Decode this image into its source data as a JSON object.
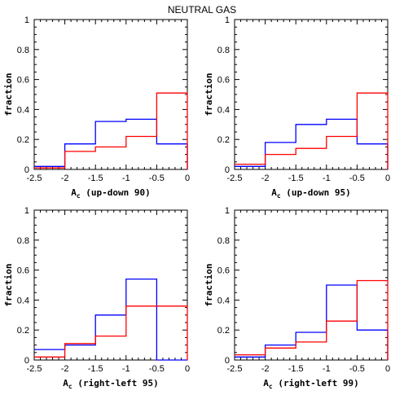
{
  "figure_title": "NEUTRAL GAS",
  "colors": {
    "series_a": "#0000ff",
    "series_b": "#ff0000",
    "axes": "#000000"
  },
  "chart_data": [
    {
      "type": "histogram",
      "bin_edges": [
        -2.5,
        -2,
        -1.5,
        -1,
        -0.5,
        0
      ],
      "series": [
        {
          "color": "blue",
          "values": [
            0.02,
            0.17,
            0.32,
            0.335,
            0.17
          ]
        },
        {
          "color": "red",
          "values": [
            0.01,
            0.12,
            0.15,
            0.22,
            0.51
          ]
        }
      ],
      "xlabel_main": "A",
      "xlabel_sub": "c",
      "xlabel_rest": " (up-down 90)",
      "ylabel": "fraction",
      "xlim": [
        -2.5,
        0
      ],
      "ylim": [
        0,
        1
      ],
      "xticks": [
        "-2.5",
        "-2",
        "-1.5",
        "-1",
        "-0.5",
        "0"
      ],
      "yticks": [
        "0",
        "0.2",
        "0.4",
        "0.6",
        "0.8",
        "1"
      ]
    },
    {
      "type": "histogram",
      "bin_edges": [
        -2.5,
        -2,
        -1.5,
        -1,
        -0.5,
        0
      ],
      "series": [
        {
          "color": "blue",
          "values": [
            0.02,
            0.18,
            0.3,
            0.335,
            0.17
          ]
        },
        {
          "color": "red",
          "values": [
            0.035,
            0.1,
            0.14,
            0.22,
            0.51
          ]
        }
      ],
      "xlabel_main": "A",
      "xlabel_sub": "c",
      "xlabel_rest": " (up-down 95)",
      "ylabel": "fraction",
      "xlim": [
        -2.5,
        0
      ],
      "ylim": [
        0,
        1
      ],
      "xticks": [
        "-2.5",
        "-2",
        "-1.5",
        "-1",
        "-0.5",
        "0"
      ],
      "yticks": [
        "0",
        "0.2",
        "0.4",
        "0.6",
        "0.8",
        "1"
      ]
    },
    {
      "type": "histogram",
      "bin_edges": [
        -2.5,
        -2,
        -1.5,
        -1,
        -0.5,
        0
      ],
      "series": [
        {
          "color": "blue",
          "values": [
            0.07,
            0.1,
            0.3,
            0.54,
            0.0
          ]
        },
        {
          "color": "red",
          "values": [
            0.02,
            0.11,
            0.16,
            0.36,
            0.36
          ]
        }
      ],
      "xlabel_main": "A",
      "xlabel_sub": "c",
      "xlabel_rest": " (right-left 95)",
      "ylabel": "fraction",
      "xlim": [
        -2.5,
        0
      ],
      "ylim": [
        0,
        1
      ],
      "xticks": [
        "-2.5",
        "-2",
        "-1.5",
        "-1",
        "-0.5",
        "0"
      ],
      "yticks": [
        "0",
        "0.2",
        "0.4",
        "0.6",
        "0.8",
        "1"
      ]
    },
    {
      "type": "histogram",
      "bin_edges": [
        -2.5,
        -2,
        -1.5,
        -1,
        -0.5,
        0
      ],
      "series": [
        {
          "color": "blue",
          "values": [
            0.02,
            0.1,
            0.185,
            0.5,
            0.2
          ]
        },
        {
          "color": "red",
          "values": [
            0.035,
            0.08,
            0.12,
            0.26,
            0.53
          ]
        }
      ],
      "xlabel_main": "A",
      "xlabel_sub": "c",
      "xlabel_rest": " (right-left 99)",
      "ylabel": "fraction",
      "xlim": [
        -2.5,
        0
      ],
      "ylim": [
        0,
        1
      ],
      "xticks": [
        "-2.5",
        "-2",
        "-1.5",
        "-1",
        "-0.5",
        "0"
      ],
      "yticks": [
        "0",
        "0.2",
        "0.4",
        "0.6",
        "0.8",
        "1"
      ]
    }
  ]
}
